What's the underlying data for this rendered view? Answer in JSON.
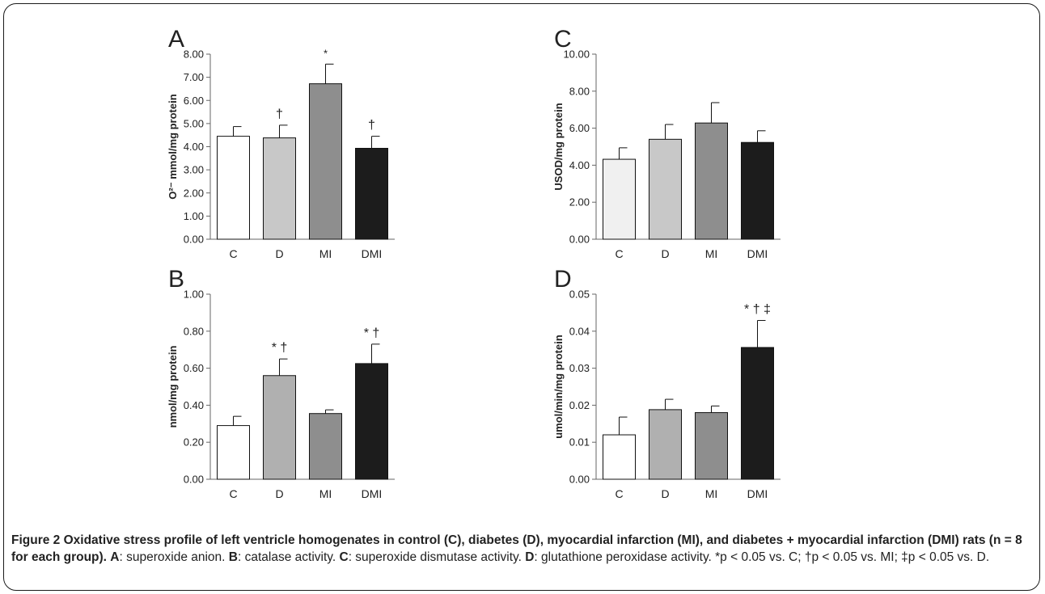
{
  "figure": {
    "caption_title": "Figure 2 Oxidative stress profile of left ventricle homogenates in control (C), diabetes (D), myocardial infarction (MI), and diabetes + myocardial infarction (DMI) rats (n = 8 for each group).",
    "caption_parts": [
      {
        "bold": "A",
        "text": ": superoxide anion. "
      },
      {
        "bold": "B",
        "text": ": catalase activity. "
      },
      {
        "bold": "C",
        "text": ": superoxide dismutase activity. "
      },
      {
        "bold": "D",
        "text": ": glutathione peroxidase activity. *p < 0.05 vs. C; †p < 0.05 vs. MI; ‡p < 0.05 vs. D."
      }
    ]
  },
  "chart_data": [
    {
      "id": "panel-a",
      "panel_label": "A",
      "type": "bar",
      "ylabel": "O²⁻ mmol/mg protein",
      "ylim": [
        0,
        8
      ],
      "ytick_step": 1,
      "ytick_decimals": 2,
      "categories": [
        "C",
        "D",
        "MI",
        "DMI"
      ],
      "values": [
        4.45,
        4.38,
        6.72,
        3.93
      ],
      "errors": [
        0.42,
        0.55,
        0.85,
        0.52
      ],
      "significance": [
        "",
        "†",
        "*",
        "†"
      ],
      "colors": [
        "#ffffff",
        "#c8c8c8",
        "#8e8e8e",
        "#1c1c1c"
      ]
    },
    {
      "id": "panel-b",
      "panel_label": "B",
      "type": "bar",
      "ylabel": "nmol/mg protein",
      "ylim": [
        0,
        1
      ],
      "ytick_step": 0.2,
      "ytick_decimals": 2,
      "categories": [
        "C",
        "D",
        "MI",
        "DMI"
      ],
      "values": [
        0.29,
        0.56,
        0.355,
        0.625
      ],
      "errors": [
        0.05,
        0.09,
        0.02,
        0.105
      ],
      "significance": [
        "",
        "* †",
        "",
        "* †"
      ],
      "colors": [
        "#ffffff",
        "#b0b0b0",
        "#8e8e8e",
        "#1c1c1c"
      ]
    },
    {
      "id": "panel-c",
      "panel_label": "C",
      "type": "bar",
      "ylabel": "USOD/mg protein",
      "ylim": [
        0,
        10
      ],
      "ytick_step": 2,
      "ytick_decimals": 2,
      "categories": [
        "C",
        "D",
        "MI",
        "DMI"
      ],
      "values": [
        4.32,
        5.4,
        6.28,
        5.23
      ],
      "errors": [
        0.62,
        0.8,
        1.1,
        0.63
      ],
      "significance": [
        "",
        "",
        "",
        ""
      ],
      "colors": [
        "#f0f0f0",
        "#c8c8c8",
        "#8e8e8e",
        "#1c1c1c"
      ]
    },
    {
      "id": "panel-d",
      "panel_label": "D",
      "type": "bar",
      "ylabel": "umol/min/mg protein",
      "ylim": [
        0,
        0.05
      ],
      "ytick_step": 0.01,
      "ytick_decimals": 2,
      "categories": [
        "C",
        "D",
        "MI",
        "DMI"
      ],
      "values": [
        0.012,
        0.0188,
        0.018,
        0.0356
      ],
      "errors": [
        0.0048,
        0.0028,
        0.0018,
        0.0073
      ],
      "significance": [
        "",
        "",
        "",
        "* † ‡"
      ],
      "colors": [
        "#ffffff",
        "#b0b0b0",
        "#8e8e8e",
        "#1c1c1c"
      ]
    }
  ]
}
